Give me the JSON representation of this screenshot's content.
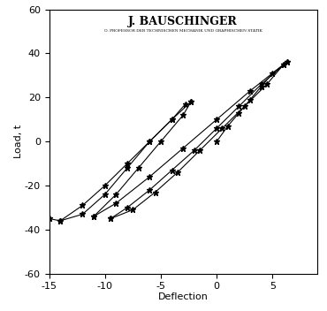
{
  "chart_data": {
    "type": "line",
    "title": "J. BAUSCHINGER",
    "subtitle": "O. PROFESSOR DER TECHNISCHEN MECHANIK UND GRAPHISCHEN STATIK",
    "x_label": "Deflection",
    "y_label": "Load, t",
    "xlim": [
      -15,
      9
    ],
    "xticks": [
      -15,
      -10,
      -5,
      0,
      5
    ],
    "ylim": [
      -60,
      60
    ],
    "yticks": [
      -60,
      -40,
      -20,
      0,
      20,
      40,
      60
    ],
    "grid": false,
    "marker": "*",
    "line_style": "solid",
    "color": "#000000",
    "series": [
      {
        "x": [
          0,
          1,
          2,
          3,
          4,
          5,
          6.3
        ],
        "values": [
          0,
          7,
          13,
          19,
          25,
          31,
          36
        ]
      },
      {
        "x": [
          6.3,
          4,
          2,
          0,
          -2,
          -4,
          -6,
          -8,
          -9.5
        ],
        "values": [
          36,
          26,
          16,
          6,
          -4,
          -13,
          -22,
          -30,
          -35
        ]
      },
      {
        "x": [
          -9.5,
          -7.5,
          -5.5,
          -3.5,
          -1.5,
          0.5,
          2.5,
          4.5,
          6
        ],
        "values": [
          -35,
          -31,
          -23,
          -14,
          -4,
          6,
          16,
          26,
          35
        ]
      },
      {
        "x": [
          6,
          3,
          0,
          -3,
          -6,
          -9,
          -11
        ],
        "values": [
          35,
          23,
          10,
          -3,
          -16,
          -28,
          -34
        ]
      },
      {
        "x": [
          -11,
          -9,
          -7,
          -5,
          -3,
          -2.3
        ],
        "values": [
          -34,
          -24,
          -12,
          0,
          12,
          18
        ]
      },
      {
        "x": [
          -2.3,
          -4,
          -6,
          -8,
          -10,
          -12,
          -14
        ],
        "values": [
          18,
          10,
          0,
          -10,
          -20,
          -29,
          -36
        ]
      },
      {
        "x": [
          -14,
          -12,
          -10,
          -8,
          -6,
          -4,
          -2.8
        ],
        "values": [
          -36,
          -33,
          -24,
          -12,
          0,
          10,
          17
        ]
      },
      {
        "x": [
          -14,
          -15
        ],
        "values": [
          -36,
          -35
        ]
      }
    ]
  }
}
